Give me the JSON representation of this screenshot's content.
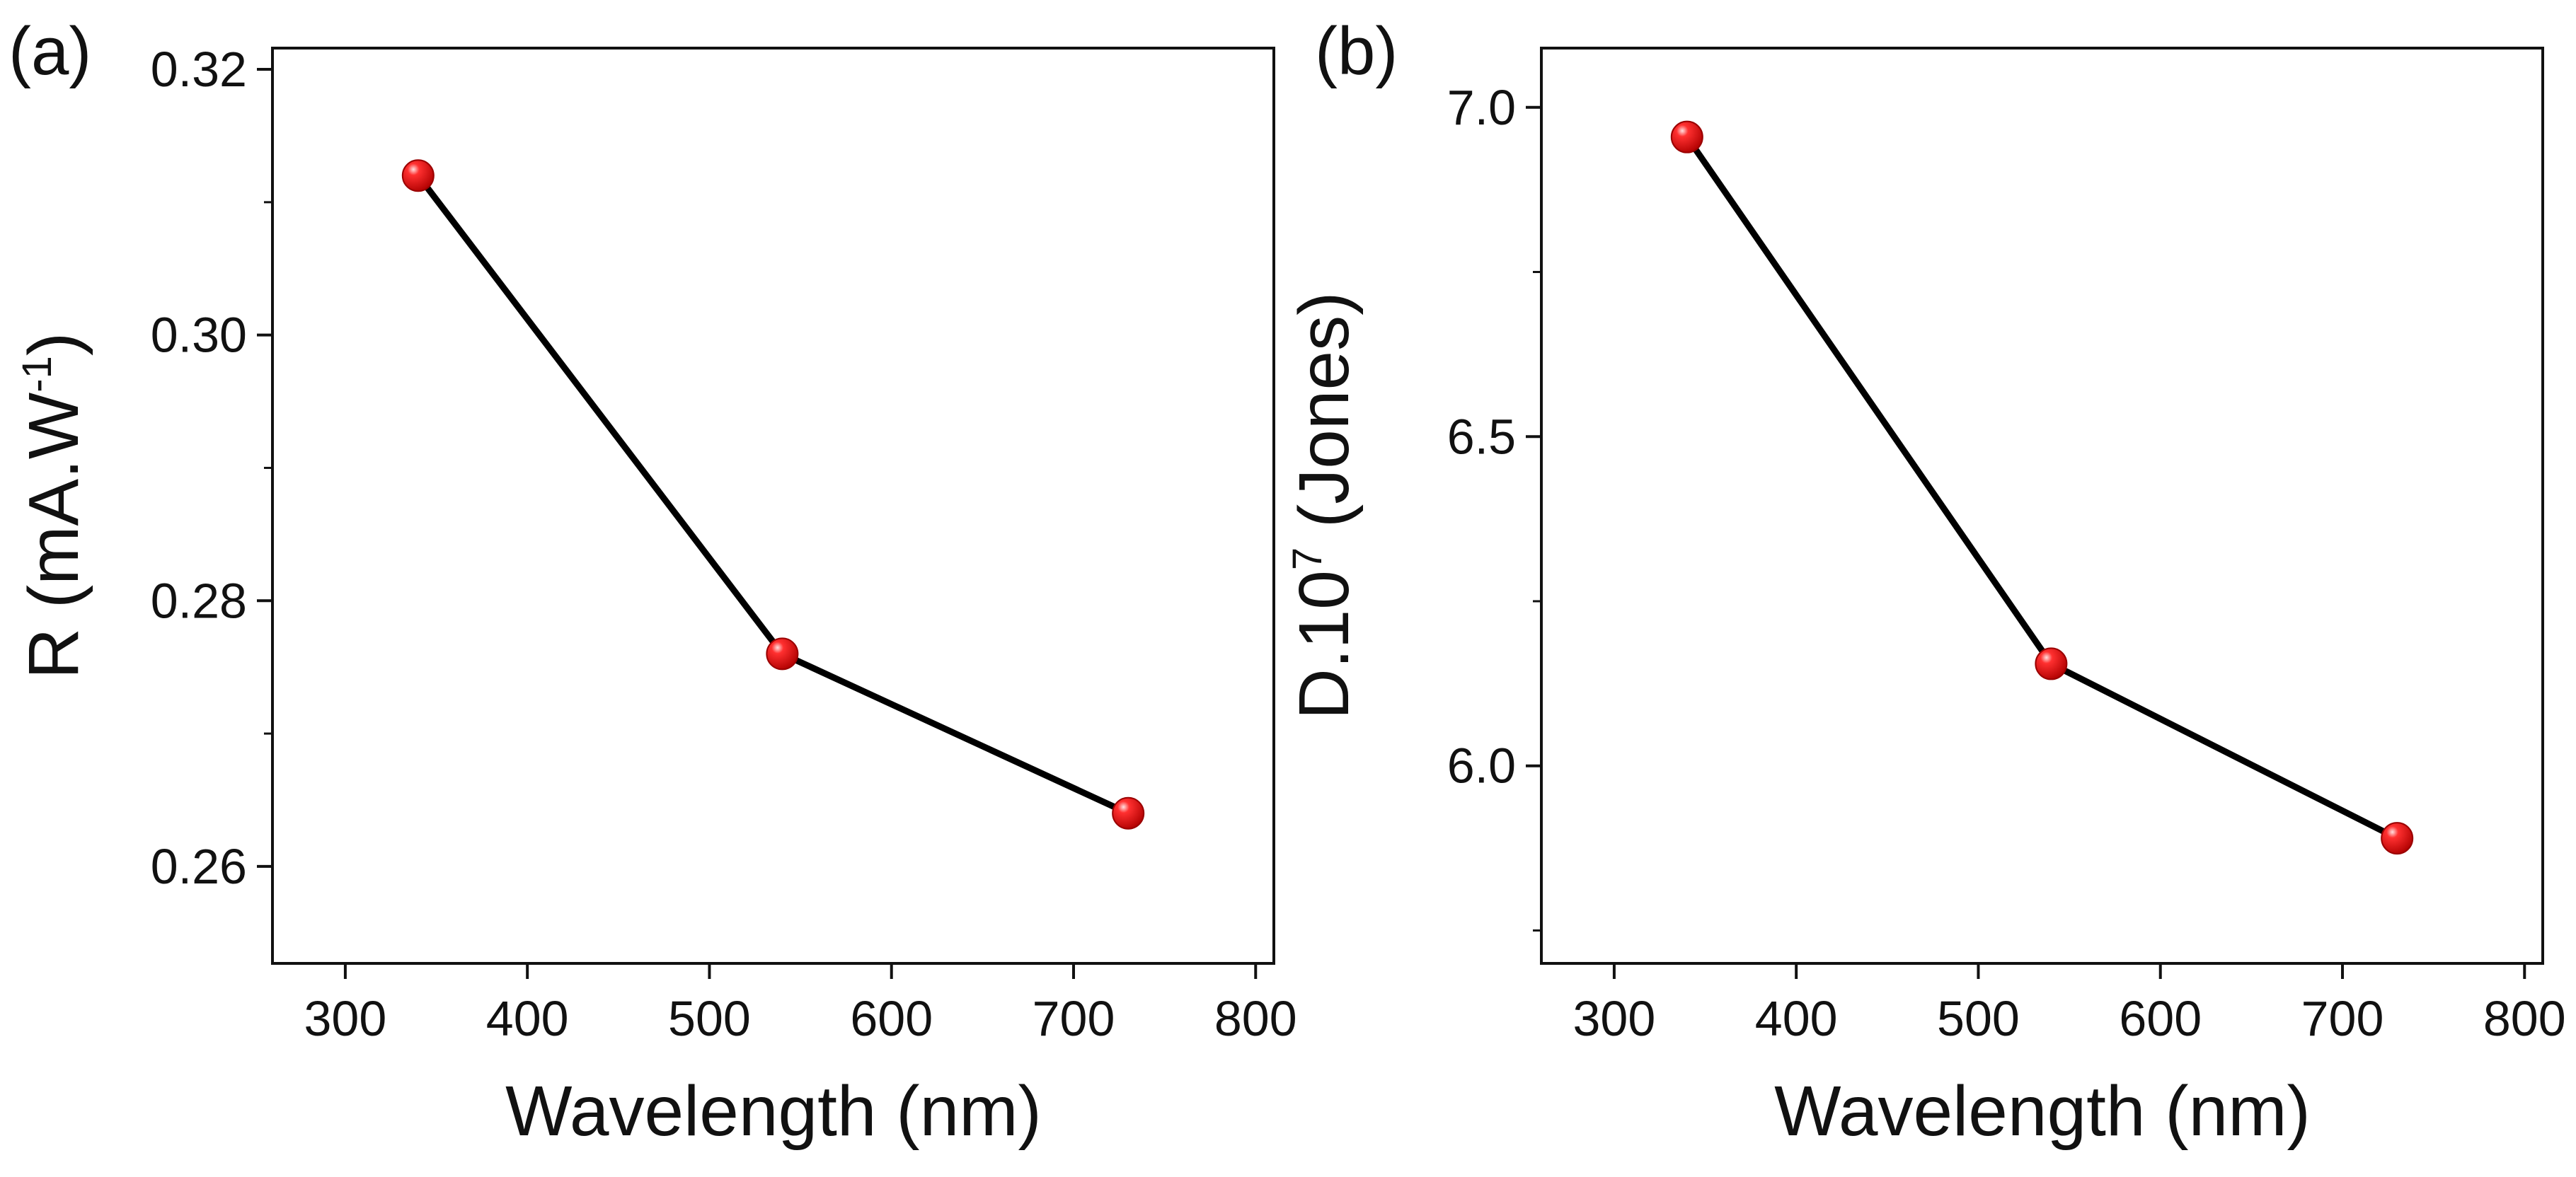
{
  "chart_data": [
    {
      "type": "line",
      "panel_label": "(a)",
      "title": "",
      "xlabel": "Wavelength (nm)",
      "ylabel_prefix": "R (mA.W",
      "ylabel_sup": "-1",
      "ylabel_suffix": ")",
      "xlim": [
        260,
        810
      ],
      "ylim": [
        0.2527,
        0.3216
      ],
      "x_ticks": [
        300,
        400,
        500,
        600,
        700,
        800
      ],
      "x_tick_labels": [
        "300",
        "400",
        "500",
        "600",
        "700",
        "800"
      ],
      "y_ticks": [
        0.26,
        0.28,
        0.3,
        0.32
      ],
      "y_tick_labels": [
        "0.26",
        "0.28",
        "0.30",
        "0.32"
      ],
      "grid": false,
      "series": [
        {
          "name": "R",
          "x": [
            340,
            540,
            730
          ],
          "y": [
            0.312,
            0.276,
            0.264
          ]
        }
      ]
    },
    {
      "type": "line",
      "panel_label": "(b)",
      "title": "",
      "xlabel": "Wavelength (nm)",
      "ylabel_prefix": "D.10",
      "ylabel_sup": "7",
      "ylabel_suffix": " (Jones)",
      "xlim": [
        260,
        810
      ],
      "ylim": [
        5.7,
        7.09
      ],
      "x_ticks": [
        300,
        400,
        500,
        600,
        700,
        800
      ],
      "x_tick_labels": [
        "300",
        "400",
        "500",
        "600",
        "700",
        "800"
      ],
      "y_ticks": [
        6.0,
        6.5,
        7.0
      ],
      "y_tick_labels": [
        "6.0",
        "6.5",
        "7.0"
      ],
      "grid": false,
      "series": [
        {
          "name": "D",
          "x": [
            340,
            540,
            730
          ],
          "y": [
            6.955,
            6.155,
            5.89
          ]
        }
      ]
    }
  ],
  "colors": {
    "line": "#000000",
    "marker": "#e00000",
    "marker_highlight": "#ffd6d6",
    "axis": "#111111"
  }
}
